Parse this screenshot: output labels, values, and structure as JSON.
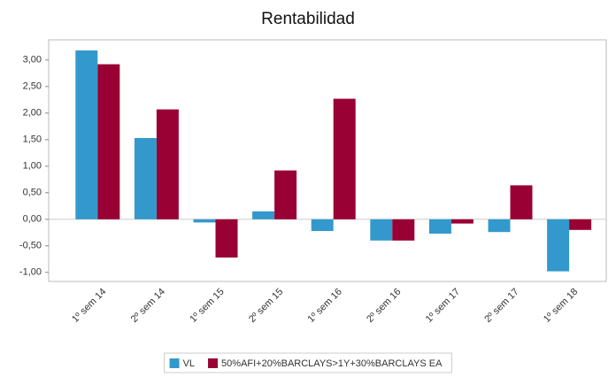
{
  "chart_data": {
    "type": "bar",
    "title": "Rentabilidad",
    "categories": [
      "1º sem 14",
      "2º sem 14",
      "1º sem 15",
      "2º sem 15",
      "1º sem 16",
      "2º sem 16",
      "1º sem 17",
      "2º sem 17",
      "1º sem 18"
    ],
    "series": [
      {
        "name": "VL",
        "color": "#3399cc",
        "values": [
          3.18,
          1.53,
          -0.06,
          0.15,
          -0.22,
          -0.4,
          -0.27,
          -0.24,
          -0.98
        ]
      },
      {
        "name": "50%AFI+20%BARCLAYS>1Y+30%BARCLAYS EA",
        "color": "#990033",
        "values": [
          2.92,
          2.07,
          -0.72,
          0.92,
          2.27,
          -0.4,
          -0.08,
          0.64,
          -0.2
        ]
      }
    ],
    "ylim": [
      -1.17,
      3.38
    ],
    "yticks": [
      {
        "value": 3,
        "label": "3,00"
      },
      {
        "value": 2.5,
        "label": "2,50"
      },
      {
        "value": 2,
        "label": "2,00"
      },
      {
        "value": 1.5,
        "label": "1,50"
      },
      {
        "value": 1,
        "label": "1,00"
      },
      {
        "value": 0.5,
        "label": "0,50"
      },
      {
        "value": 0,
        "label": "0,00"
      },
      {
        "value": -0.5,
        "label": "-0,50"
      },
      {
        "value": -1,
        "label": "-1,00"
      }
    ],
    "grid": false,
    "legend": "bottom"
  }
}
